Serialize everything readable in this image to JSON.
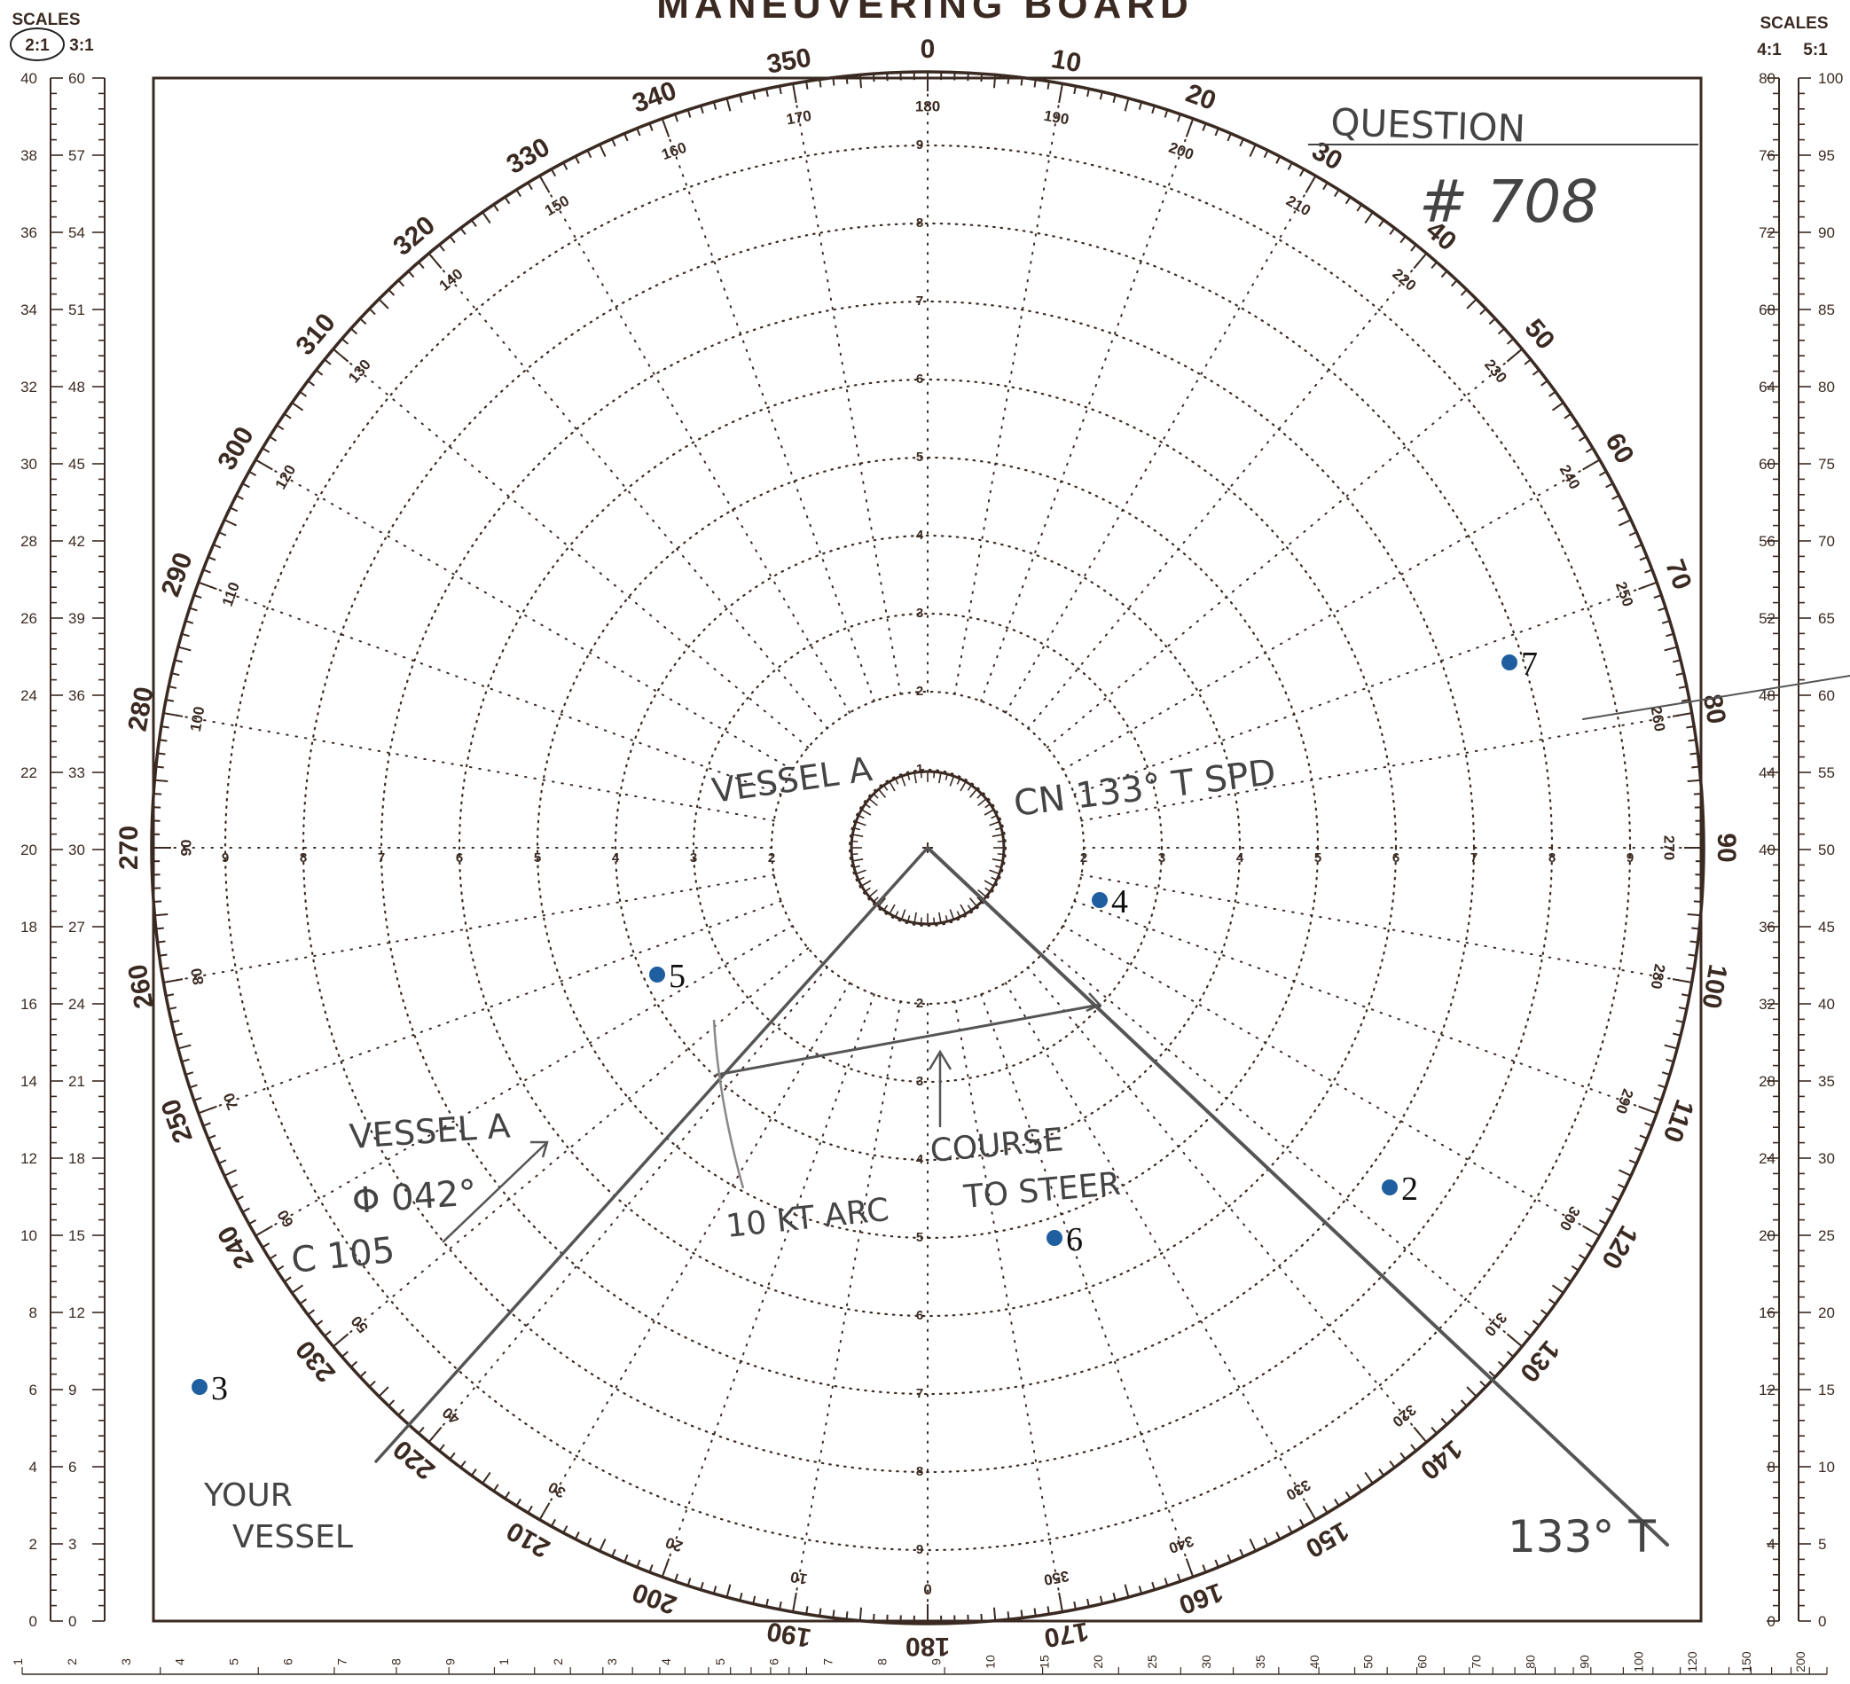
{
  "title": "MANEUVERING BOARD",
  "scales_left": {
    "heading": "SCALES",
    "ratios": [
      "2:1",
      "3:1"
    ],
    "circled": "2:1",
    "col_a": [
      "0",
      "2",
      "4",
      "6",
      "8",
      "10",
      "12",
      "14",
      "16",
      "18",
      "20",
      "22",
      "24",
      "26",
      "28",
      "30",
      "32",
      "34",
      "36",
      "38",
      "40"
    ],
    "col_b": [
      "0",
      "3",
      "6",
      "9",
      "12",
      "15",
      "18",
      "21",
      "24",
      "27",
      "30",
      "33",
      "36",
      "39",
      "42",
      "45",
      "48",
      "51",
      "54",
      "57",
      "60"
    ]
  },
  "scales_right": {
    "heading": "SCALES",
    "ratios": [
      "4:1",
      "5:1"
    ],
    "col_a": [
      "0",
      "4",
      "8",
      "12",
      "16",
      "20",
      "24",
      "28",
      "32",
      "36",
      "40",
      "44",
      "48",
      "52",
      "56",
      "60",
      "64",
      "68",
      "72",
      "76",
      "80"
    ],
    "col_b": [
      "0",
      "5",
      "10",
      "15",
      "20",
      "25",
      "30",
      "35",
      "40",
      "45",
      "50",
      "55",
      "60",
      "65",
      "70",
      "75",
      "80",
      "85",
      "90",
      "95",
      "100"
    ]
  },
  "bearing_labels_outer": [
    "0",
    "10",
    "20",
    "30",
    "40",
    "50",
    "60",
    "70",
    "80",
    "90",
    "100",
    "110",
    "120",
    "130",
    "140",
    "150",
    "160",
    "170",
    "180",
    "190",
    "200",
    "210",
    "220",
    "230",
    "240",
    "250",
    "260",
    "270",
    "280",
    "290",
    "300",
    "310",
    "320",
    "330",
    "340",
    "350"
  ],
  "bearing_labels_inner": [
    "180",
    "190",
    "200",
    "210",
    "220",
    "230",
    "240",
    "250",
    "260",
    "270",
    "280",
    "290",
    "300",
    "310",
    "320",
    "330",
    "340",
    "350",
    "0",
    "10",
    "20",
    "30",
    "40",
    "50",
    "60",
    "70",
    "80",
    "90",
    "100",
    "110",
    "120",
    "130",
    "140",
    "150",
    "160",
    "170"
  ],
  "ring_labels": [
    "1",
    "2",
    "3",
    "4",
    "5",
    "6",
    "7",
    "8",
    "9"
  ],
  "bottom_log_scale": [
    "1",
    "2",
    "3",
    "4",
    "5",
    "6",
    "7",
    "8",
    "9",
    "1",
    "2",
    "3",
    "4",
    "5",
    "6",
    "7",
    "8",
    "9",
    "10",
    "15",
    "20",
    "25",
    "30",
    "35",
    "40",
    "50",
    "60",
    "70",
    "80",
    "90",
    "100",
    "120",
    "150",
    "200"
  ],
  "annotations": {
    "question": "QUESTION",
    "question_number": "# 708",
    "vessel_a": "VESSEL A",
    "course_speed": "CN 133° T   SPD",
    "vessel_a_info_1": "VESSEL A",
    "vessel_a_info_2": "Φ 042°",
    "vessel_a_info_3": "C 105",
    "arc": "10 KT ARC",
    "course_to_steer_1": "COURSE",
    "course_to_steer_2": "TO STEER",
    "your_vessel_1": "YOUR",
    "your_vessel_2": "VESSEL",
    "bearing_133": "133° T"
  },
  "markers": [
    {
      "label": "2",
      "color": "#1f5fa0"
    },
    {
      "label": "3",
      "color": "#1f5fa0"
    },
    {
      "label": "4",
      "color": "#1f5fa0"
    },
    {
      "label": "5",
      "color": "#1f5fa0"
    },
    {
      "label": "6",
      "color": "#1f5fa0"
    },
    {
      "label": "7",
      "color": "#1f5fa0"
    }
  ],
  "colors": {
    "ink": "#3a2a22",
    "pencil": "#555555",
    "marker": "#1f5fa0"
  }
}
